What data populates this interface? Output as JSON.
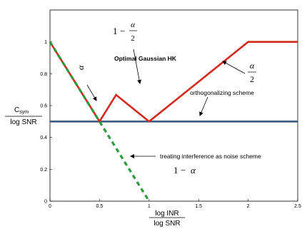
{
  "chart_data": {
    "type": "line",
    "xlabel": {
      "numerator": "log INR",
      "denominator": "log SNR"
    },
    "ylabel": {
      "numerator": "C",
      "subscript": "sym",
      "denominator": "log SNR"
    },
    "xlim": [
      0,
      2.5
    ],
    "ylim": [
      0,
      1.2
    ],
    "xticks": [
      "0",
      "0.5",
      "1",
      "1.5",
      "2",
      "2.5"
    ],
    "yticks": [
      "0",
      "0.2",
      "0.4",
      "0.6",
      "0.8",
      "1"
    ],
    "grid": false,
    "series": [
      {
        "name": "Optimal Gaussian HK",
        "color": "#d42a1e",
        "style": "solid",
        "x": [
          0,
          0.5,
          0.667,
          1,
          2,
          2.5
        ],
        "y": [
          1,
          0.5,
          0.667,
          0.5,
          1,
          1
        ]
      },
      {
        "name": "orthogonalizing scheme",
        "color": "#3d5a80",
        "style": "solid",
        "x": [
          0,
          2.5
        ],
        "y": [
          0.5,
          0.5
        ]
      },
      {
        "name": "treating interference as noise scheme",
        "color": "#2e9a3e",
        "style": "dashed",
        "x": [
          0,
          1
        ],
        "y": [
          1,
          0
        ]
      }
    ],
    "annotations": {
      "hk_label": "Optimal Gaussian HK",
      "orth_label": "orthogonalizing scheme",
      "tin_label": "treating interference as noise scheme",
      "slope_mid": {
        "one": "1",
        "minus": "−",
        "alpha": "α",
        "two": "2"
      },
      "slope_right": {
        "alpha": "α",
        "two": "2"
      },
      "slope_tin": {
        "one": "1",
        "minus": "−",
        "alpha": "α"
      },
      "slope_first": "α"
    }
  }
}
